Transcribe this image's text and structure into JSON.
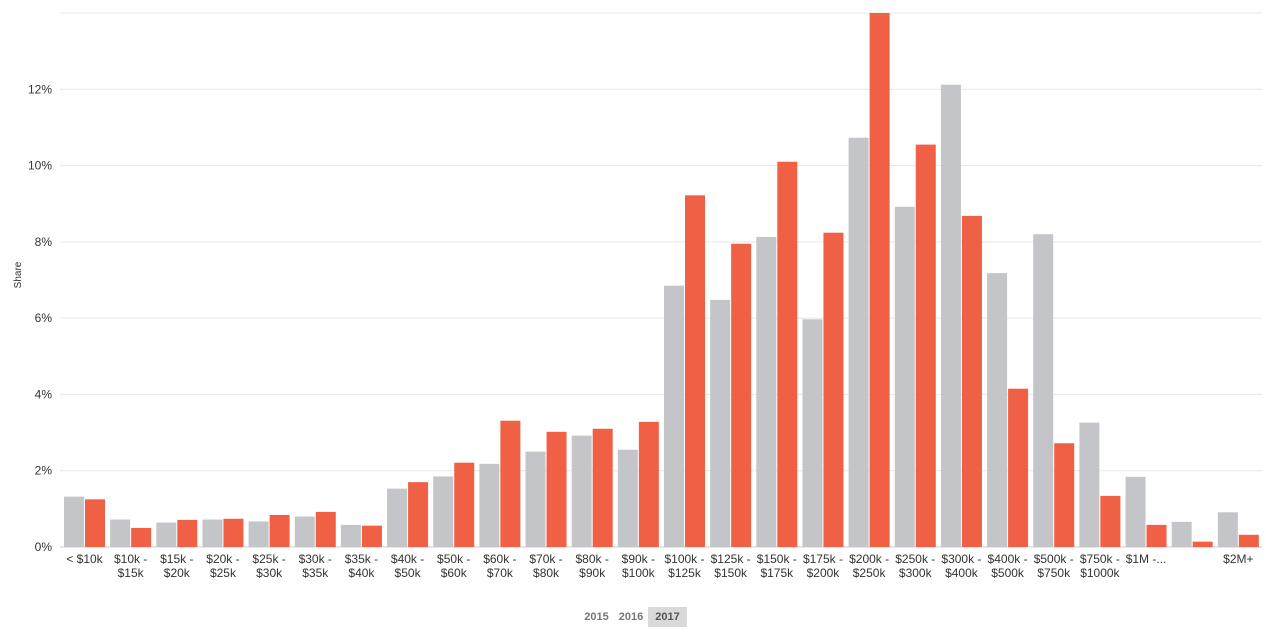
{
  "chart_data": {
    "type": "bar",
    "ylabel": "Share",
    "xlabel": "",
    "ylim": [
      0,
      14
    ],
    "yticks": [
      "0%",
      "2%",
      "4%",
      "6%",
      "8%",
      "10%",
      "12%"
    ],
    "grid": true,
    "categories": [
      [
        "< $10k"
      ],
      [
        "$10k -",
        "$15k"
      ],
      [
        "$15k -",
        "$20k"
      ],
      [
        "$20k -",
        "$25k"
      ],
      [
        "$25k -",
        "$30k"
      ],
      [
        "$30k -",
        "$35k"
      ],
      [
        "$35k -",
        "$40k"
      ],
      [
        "$40k -",
        "$50k"
      ],
      [
        "$50k -",
        "$60k"
      ],
      [
        "$60k -",
        "$70k"
      ],
      [
        "$70k -",
        "$80k"
      ],
      [
        "$80k -",
        "$90k"
      ],
      [
        "$90k -",
        "$100k"
      ],
      [
        "$100k -",
        "$125k"
      ],
      [
        "$125k -",
        "$150k"
      ],
      [
        "$150k -",
        "$175k"
      ],
      [
        "$175k -",
        "$200k"
      ],
      [
        "$200k -",
        "$250k"
      ],
      [
        "$250k -",
        "$300k"
      ],
      [
        "$300k -",
        "$400k"
      ],
      [
        "$400k -",
        "$500k"
      ],
      [
        "$500k -",
        "$750k"
      ],
      [
        "$750k -",
        "$1000k"
      ],
      [
        "$1M -..."
      ],
      [
        ""
      ],
      [
        "$2M+"
      ]
    ],
    "series": [
      {
        "color": "#c4c5c8",
        "values": [
          1.32,
          0.72,
          0.64,
          0.72,
          0.67,
          0.8,
          0.58,
          1.53,
          1.85,
          2.18,
          2.5,
          2.92,
          2.55,
          6.85,
          6.48,
          8.13,
          5.97,
          10.73,
          8.92,
          12.12,
          7.18,
          8.2,
          3.26,
          1.84,
          0.66,
          0.91
        ]
      },
      {
        "color": "#ef6045",
        "values": [
          1.25,
          0.5,
          0.71,
          0.74,
          0.84,
          0.92,
          0.56,
          1.7,
          2.21,
          3.31,
          3.02,
          3.1,
          3.28,
          9.22,
          7.95,
          10.1,
          8.24,
          14.0,
          10.55,
          8.68,
          4.15,
          2.72,
          1.34,
          0.58,
          0.14,
          0.32
        ]
      }
    ]
  },
  "year_selector": {
    "years": [
      "2015",
      "2016",
      "2017"
    ],
    "active": "2017"
  }
}
